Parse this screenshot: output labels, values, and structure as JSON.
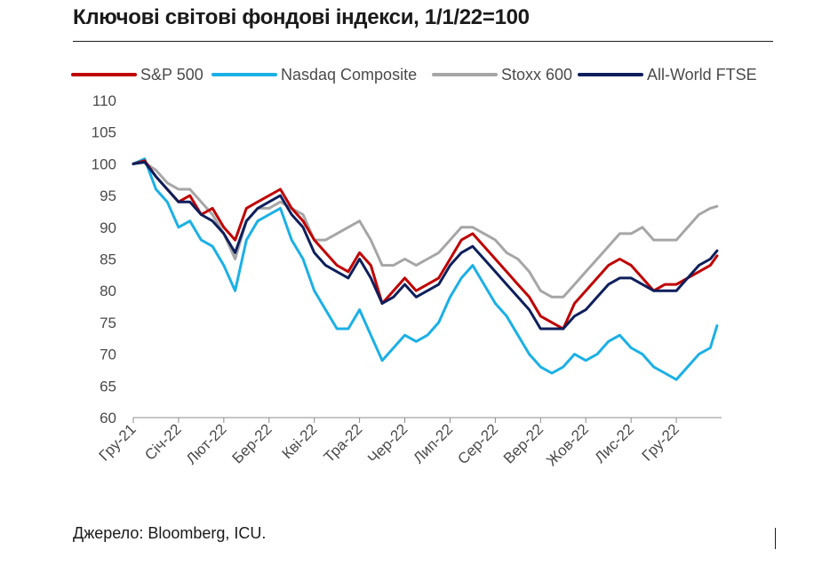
{
  "title": "Ключові світові фондові індекси, 1/1/22=100",
  "source": "Джерело: Bloomberg, ICU.",
  "chart_data": {
    "type": "line",
    "title": "Ключові світові фондові індекси, 1/1/22=100",
    "xlabel": "",
    "ylabel": "",
    "ylim": [
      60,
      110
    ],
    "yticks": [
      60,
      65,
      70,
      75,
      80,
      85,
      90,
      95,
      100,
      105,
      110
    ],
    "xlim": [
      0,
      13
    ],
    "x_ticks": [
      {
        "label": "Гру-21",
        "x": 0
      },
      {
        "label": "Січ-22",
        "x": 1
      },
      {
        "label": "Лют-22",
        "x": 2
      },
      {
        "label": "Бер-22",
        "x": 3
      },
      {
        "label": "Кві-22",
        "x": 4
      },
      {
        "label": "Тра-22",
        "x": 5
      },
      {
        "label": "Чер-22",
        "x": 6
      },
      {
        "label": "Лип-22",
        "x": 7
      },
      {
        "label": "Сер-22",
        "x": 8
      },
      {
        "label": "Вер-22",
        "x": 9
      },
      {
        "label": "Жов-22",
        "x": 10
      },
      {
        "label": "Лис-22",
        "x": 11
      },
      {
        "label": "Гру-22",
        "x": 12
      }
    ],
    "legend_position": "top",
    "x": [
      0,
      0.25,
      0.5,
      0.75,
      1,
      1.25,
      1.5,
      1.75,
      2,
      2.25,
      2.5,
      2.75,
      3,
      3.25,
      3.5,
      3.75,
      4,
      4.25,
      4.5,
      4.75,
      5,
      5.25,
      5.5,
      5.75,
      6,
      6.25,
      6.5,
      6.75,
      7,
      7.25,
      7.5,
      7.75,
      8,
      8.25,
      8.5,
      8.75,
      9,
      9.25,
      9.5,
      9.75,
      10,
      10.25,
      10.5,
      10.75,
      11,
      11.25,
      11.5,
      11.75,
      12,
      12.25,
      12.5,
      12.75,
      12.9
    ],
    "series": [
      {
        "name": "S&P 500",
        "color": "#c00000",
        "values": [
          100,
          100.5,
          98,
          96,
          94,
          95,
          92,
          93,
          90,
          88,
          93,
          94,
          95,
          96,
          93,
          91,
          88,
          86,
          84,
          83,
          86,
          84,
          78,
          80,
          82,
          80,
          81,
          82,
          85,
          88,
          89,
          87,
          85,
          83,
          81,
          79,
          76,
          75,
          74,
          78,
          80,
          82,
          84,
          85,
          84,
          82,
          80,
          81,
          81,
          82,
          83,
          84,
          85.5
        ]
      },
      {
        "name": "Nasdaq Composite",
        "color": "#1ab0e6",
        "values": [
          100,
          100.8,
          96,
          94,
          90,
          91,
          88,
          87,
          84,
          80,
          88,
          91,
          92,
          93,
          88,
          85,
          80,
          77,
          74,
          74,
          77,
          73,
          69,
          71,
          73,
          72,
          73,
          75,
          79,
          82,
          84,
          81,
          78,
          76,
          73,
          70,
          68,
          67,
          68,
          70,
          69,
          70,
          72,
          73,
          71,
          70,
          68,
          67,
          66,
          68,
          70,
          71,
          74.5
        ]
      },
      {
        "name": "Stoxx 600",
        "color": "#a6a6a6",
        "values": [
          100,
          100.2,
          99,
          97,
          96,
          96,
          94,
          92,
          89,
          85,
          91,
          93,
          93,
          94,
          93,
          92,
          88,
          88,
          89,
          90,
          91,
          88,
          84,
          84,
          85,
          84,
          85,
          86,
          88,
          90,
          90,
          89,
          88,
          86,
          85,
          83,
          80,
          79,
          79,
          81,
          83,
          85,
          87,
          89,
          89,
          90,
          88,
          88,
          88,
          90,
          92,
          93,
          93.3
        ]
      },
      {
        "name": "All-World FTSE",
        "color": "#0d1f5c",
        "values": [
          100,
          100.3,
          98,
          96,
          94,
          94,
          92,
          91,
          89,
          86,
          91,
          93,
          94,
          95,
          92,
          90,
          86,
          84,
          83,
          82,
          85,
          82,
          78,
          79,
          81,
          79,
          80,
          81,
          84,
          86,
          87,
          85,
          83,
          81,
          79,
          77,
          74,
          74,
          74,
          76,
          77,
          79,
          81,
          82,
          82,
          81,
          80,
          80,
          80,
          82,
          84,
          85,
          86.3
        ]
      }
    ]
  }
}
